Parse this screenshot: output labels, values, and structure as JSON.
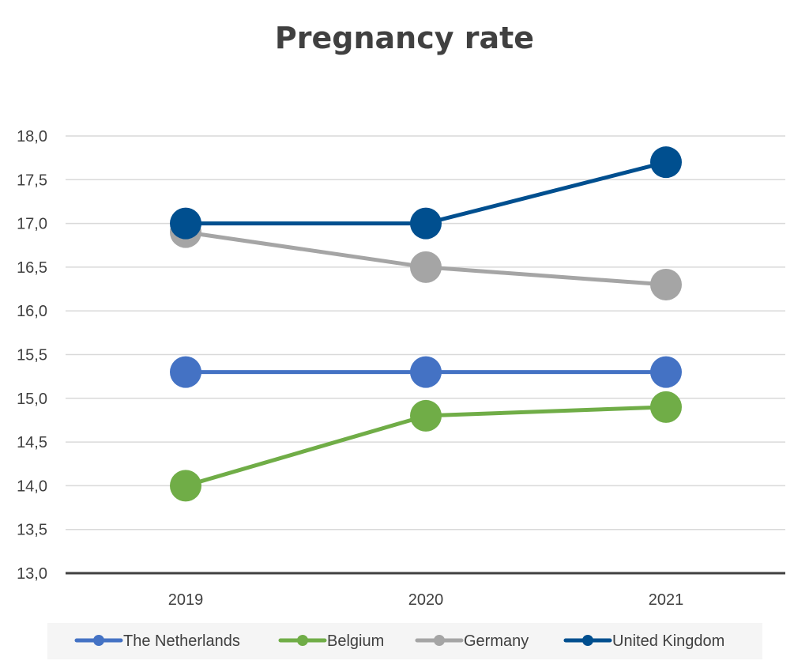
{
  "chart_data": {
    "type": "line",
    "title": "Pregnancy rate",
    "xlabel": "",
    "ylabel": "",
    "categories": [
      "2019",
      "2020",
      "2021"
    ],
    "ylim": [
      13.0,
      18.0
    ],
    "yticks": [
      "13,0",
      "13,5",
      "14,0",
      "14,5",
      "15,0",
      "15,5",
      "16,0",
      "16,5",
      "17,0",
      "17,5",
      "18,0"
    ],
    "grid": true,
    "legend_position": "bottom",
    "series": [
      {
        "name": "The Netherlands",
        "values": [
          15.3,
          15.3,
          15.3
        ],
        "color": "#4472c4"
      },
      {
        "name": "Belgium",
        "values": [
          14.0,
          14.8,
          14.9
        ],
        "color": "#70ad47"
      },
      {
        "name": "Germany",
        "values": [
          16.9,
          16.5,
          16.3
        ],
        "color": "#a5a5a5"
      },
      {
        "name": "United Kingdom",
        "values": [
          17.0,
          17.0,
          17.7
        ],
        "color": "#004f8f"
      }
    ]
  }
}
